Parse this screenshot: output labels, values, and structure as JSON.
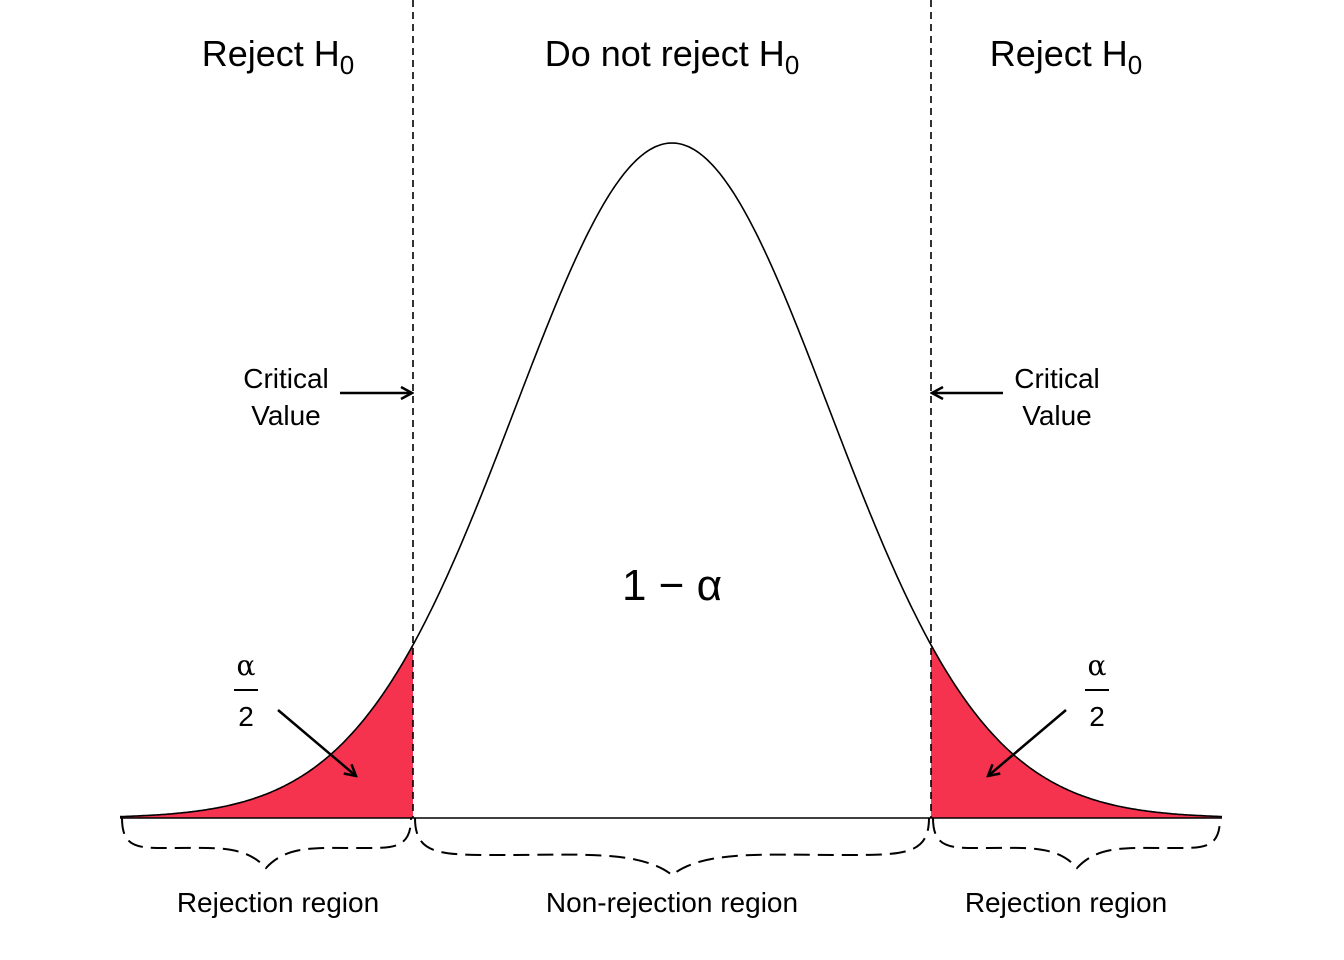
{
  "labels": {
    "top": [
      {
        "text": "Reject H",
        "subscript": "0"
      },
      {
        "text": "Do not reject H",
        "subscript": "0"
      },
      {
        "text": "Reject H",
        "subscript": "0"
      }
    ],
    "critical_left": [
      "Critical",
      "Value"
    ],
    "critical_right": [
      "Critical",
      "Value"
    ],
    "center": "1 − α",
    "alpha_left": {
      "numerator": "α",
      "denominator": "2"
    },
    "alpha_right": {
      "numerator": "α",
      "denominator": "2"
    },
    "regions": [
      "Rejection region",
      "Non-rejection region",
      "Rejection region"
    ]
  }
}
